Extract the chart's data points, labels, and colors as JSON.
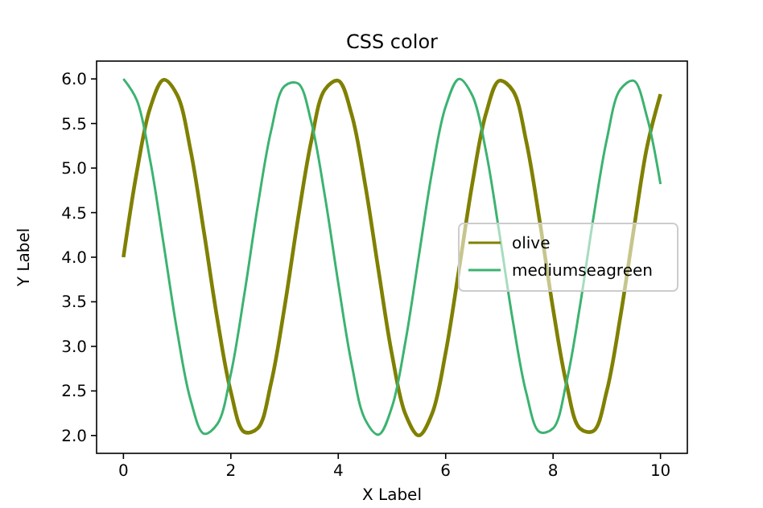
{
  "chart_data": {
    "type": "line",
    "title": "CSS color",
    "xlabel": "X Label",
    "ylabel": "Y Label",
    "x": [
      0,
      0.25,
      0.5,
      0.75,
      1,
      1.25,
      1.5,
      1.75,
      2,
      2.25,
      2.5,
      2.75,
      3,
      3.25,
      3.5,
      3.75,
      4,
      4.25,
      4.5,
      4.75,
      5,
      5.25,
      5.5,
      5.75,
      6,
      6.25,
      6.5,
      6.75,
      7,
      7.25,
      7.5,
      7.75,
      8,
      8.25,
      8.5,
      8.75,
      9,
      9.25,
      9.5,
      9.75,
      10
    ],
    "series": [
      {
        "name": "olive",
        "color": "#808000",
        "values": [
          4.0,
          4.96,
          5.68,
          5.99,
          5.82,
          5.2,
          4.28,
          3.3,
          2.49,
          2.04,
          2.08,
          2.59,
          3.44,
          4.43,
          5.31,
          5.88,
          5.98,
          5.6,
          4.82,
          3.85,
          2.91,
          2.24,
          2.0,
          2.25,
          2.93,
          3.87,
          4.84,
          5.61,
          5.98,
          5.87,
          5.3,
          4.41,
          3.42,
          2.58,
          2.08,
          2.05,
          2.5,
          3.32,
          4.3,
          5.24,
          5.83
        ]
      },
      {
        "name": "mediumseagreen",
        "color": "#3cb371",
        "values": [
          6.0,
          5.76,
          5.08,
          4.14,
          3.17,
          2.4,
          2.02,
          2.13,
          2.69,
          3.58,
          4.57,
          5.42,
          5.92,
          5.95,
          5.51,
          4.69,
          3.71,
          2.8,
          2.18,
          2.01,
          2.32,
          3.05,
          4.01,
          4.97,
          5.69,
          6.0,
          5.81,
          5.19,
          4.27,
          3.29,
          2.48,
          2.04,
          2.08,
          2.6,
          3.45,
          4.44,
          5.32,
          5.88,
          5.98,
          5.57,
          4.82
        ]
      }
    ],
    "xlim": [
      -0.5,
      10.5
    ],
    "xticks": [
      0,
      2,
      4,
      6,
      8,
      10
    ],
    "ylim": [
      1.8,
      6.2
    ],
    "yticks": [
      {
        "value": 2,
        "label": "2.0"
      },
      {
        "value": 2.5,
        "label": "2.5"
      },
      {
        "value": 3,
        "label": "3.0"
      },
      {
        "value": 3.5,
        "label": "3.5"
      },
      {
        "value": 4,
        "label": "4.0"
      },
      {
        "value": 4.5,
        "label": "4.5"
      },
      {
        "value": 5,
        "label": "5.0"
      },
      {
        "value": 5.5,
        "label": "5.5"
      },
      {
        "value": 6,
        "label": "6.0"
      }
    ],
    "legend": "right",
    "grid": false
  }
}
